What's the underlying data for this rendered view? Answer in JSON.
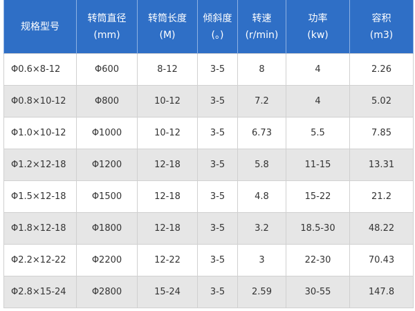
{
  "table": {
    "header": [
      {
        "title": "规格型号"
      },
      {
        "title": "转筒直径",
        "unit": "(mm)"
      },
      {
        "title": "转筒长度",
        "unit": "(M)"
      },
      {
        "title": "倾斜度",
        "unit": "(。)"
      },
      {
        "title": "转速",
        "unit": "(r/min)"
      },
      {
        "title": "功率",
        "unit": "(kw)"
      },
      {
        "title": "容积",
        "unit": "(m3)"
      }
    ],
    "rows": [
      [
        "Φ0.6×8-12",
        "Φ600",
        "8-12",
        "3-5",
        "8",
        "4",
        "2.26"
      ],
      [
        "Φ0.8×10-12",
        "Φ800",
        "10-12",
        "3-5",
        "7.2",
        "4",
        "5.02"
      ],
      [
        "Φ1.0×10-12",
        "Φ1000",
        "10-12",
        "3-5",
        "6.73",
        "5.5",
        "7.85"
      ],
      [
        "Φ1.2×12-18",
        "Φ1200",
        "12-18",
        "3-5",
        "5.8",
        "11-15",
        "13.31"
      ],
      [
        "Φ1.5×12-18",
        "Φ1500",
        "12-18",
        "3-5",
        "4.8",
        "15-22",
        "21.2"
      ],
      [
        "Φ1.8×12-18",
        "Φ1800",
        "12-18",
        "3-5",
        "3.2",
        "18.5-30",
        "48.22"
      ],
      [
        "Φ2.2×12-22",
        "Φ2200",
        "12-22",
        "3-5",
        "3",
        "22-30",
        "70.43"
      ],
      [
        "Φ2.8×15-24",
        "Φ2800",
        "15-24",
        "3-5",
        "2.59",
        "30-55",
        "147.8"
      ]
    ]
  }
}
